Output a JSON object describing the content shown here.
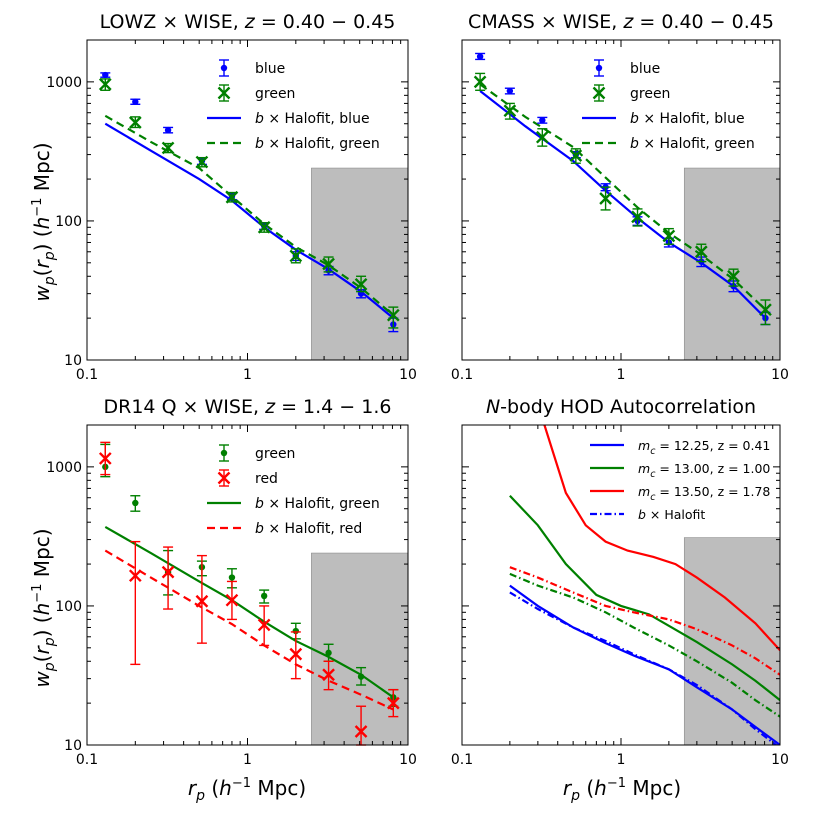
{
  "figure": {
    "ylabel": "w_p(r_p) (h^-1 Mpc)",
    "xlabel": "r_p (h^-1 Mpc)"
  },
  "chart_data": [
    {
      "type": "scatter",
      "title": "LOWZ × WISE, z = 0.40 − 0.45",
      "title_parts": [
        "LOWZ × WISE, ",
        "z",
        " = 0.40 − 0.45"
      ],
      "xscale": "log",
      "yscale": "log",
      "xlim": [
        0.1,
        10
      ],
      "ylim": [
        10,
        2000
      ],
      "xticks": [
        0.1,
        1,
        10
      ],
      "xtick_labels": [
        "0.1",
        "1",
        "10"
      ],
      "yticks": [
        10,
        100,
        1000
      ],
      "ytick_labels": [
        "10",
        "100",
        "1000"
      ],
      "show_ytick_labels": true,
      "show_ylabel": true,
      "show_xlabel": false,
      "shaded_region": {
        "x_from": 2.5,
        "x_to": 10,
        "y_from": 10,
        "y_to": 240
      },
      "legend": {
        "placement": "top-right",
        "entries": [
          {
            "label": "blue",
            "color": "#0000ff",
            "marker": "dot"
          },
          {
            "label": "green",
            "color": "#008000",
            "marker": "x"
          },
          {
            "label": "b × Halofit, blue",
            "color": "#0000ff",
            "line": "solid"
          },
          {
            "label": "b × Halofit, green",
            "color": "#008000",
            "line": "dashed"
          }
        ]
      },
      "points": [
        {
          "name": "blue",
          "color": "#0000ff",
          "marker": "dot",
          "x": [
            0.13,
            0.2,
            0.32,
            0.52,
            0.8,
            1.27,
            2.0,
            3.2,
            5.1,
            8.1
          ],
          "y": [
            1120,
            720,
            450,
            270,
            150,
            92,
            56,
            44,
            30,
            18
          ],
          "yerr_low": [
            1080,
            690,
            430,
            255,
            142,
            87,
            52,
            41,
            28,
            16
          ],
          "yerr_high": [
            1160,
            750,
            470,
            285,
            158,
            97,
            60,
            47,
            32,
            20
          ]
        },
        {
          "name": "green",
          "color": "#008000",
          "marker": "x",
          "x": [
            0.13,
            0.2,
            0.32,
            0.52,
            0.8,
            1.27,
            2.0,
            3.2,
            5.1,
            8.1
          ],
          "y": [
            960,
            510,
            335,
            265,
            148,
            90,
            56,
            49,
            35,
            21
          ],
          "yerr_low": [
            870,
            470,
            310,
            245,
            137,
            83,
            50,
            43,
            31,
            17
          ],
          "yerr_high": [
            1050,
            560,
            360,
            285,
            160,
            97,
            63,
            55,
            40,
            24
          ]
        }
      ],
      "lines": [
        {
          "name": "b × Halofit, blue",
          "color": "#0000ff",
          "dash": "solid",
          "x": [
            0.13,
            0.25,
            0.5,
            0.8,
            1.27,
            2.0,
            3.2,
            5.1,
            8.1
          ],
          "y": [
            500,
            320,
            200,
            140,
            90,
            62,
            45,
            31,
            20
          ]
        },
        {
          "name": "b × Halofit, green",
          "color": "#008000",
          "dash": "dashed",
          "x": [
            0.13,
            0.25,
            0.5,
            0.8,
            1.27,
            2.0,
            3.2,
            5.1,
            8.1
          ],
          "y": [
            570,
            370,
            240,
            150,
            95,
            65,
            48,
            33,
            21
          ]
        }
      ]
    },
    {
      "type": "scatter",
      "title": "CMASS × WISE, z = 0.40 − 0.45",
      "title_parts": [
        "CMASS × WISE, ",
        "z",
        " = 0.40 − 0.45"
      ],
      "xscale": "log",
      "yscale": "log",
      "xlim": [
        0.1,
        10
      ],
      "ylim": [
        10,
        2000
      ],
      "xticks": [
        0.1,
        1,
        10
      ],
      "xtick_labels": [
        "0.1",
        "1",
        "10"
      ],
      "yticks": [
        10,
        100,
        1000
      ],
      "ytick_labels": [
        "10",
        "100",
        "1000"
      ],
      "show_ytick_labels": false,
      "show_ylabel": false,
      "show_xlabel": false,
      "shaded_region": {
        "x_from": 2.5,
        "x_to": 10,
        "y_from": 10,
        "y_to": 240
      },
      "legend": {
        "placement": "top-right",
        "entries": [
          {
            "label": "blue",
            "color": "#0000ff",
            "marker": "dot"
          },
          {
            "label": "green",
            "color": "#008000",
            "marker": "x"
          },
          {
            "label": "b × Halofit, blue",
            "color": "#0000ff",
            "line": "solid"
          },
          {
            "label": "b × Halofit, green",
            "color": "#008000",
            "line": "dashed"
          }
        ]
      },
      "points": [
        {
          "name": "blue",
          "color": "#0000ff",
          "marker": "dot",
          "x": [
            0.13,
            0.2,
            0.32,
            0.52,
            0.8,
            1.27,
            2.0,
            3.2,
            5.1,
            8.1
          ],
          "y": [
            1520,
            860,
            530,
            300,
            175,
            100,
            70,
            51,
            34,
            20
          ],
          "yerr_low": [
            1450,
            820,
            505,
            285,
            165,
            93,
            65,
            47,
            31,
            18
          ],
          "yerr_high": [
            1600,
            900,
            555,
            315,
            185,
            107,
            75,
            55,
            37,
            22
          ]
        },
        {
          "name": "green",
          "color": "#008000",
          "marker": "x",
          "x": [
            0.13,
            0.2,
            0.32,
            0.52,
            0.8,
            1.27,
            2.0,
            3.2,
            5.1,
            8.1
          ],
          "y": [
            1000,
            620,
            400,
            295,
            145,
            107,
            78,
            60,
            40,
            23
          ],
          "yerr_low": [
            870,
            540,
            345,
            260,
            120,
            92,
            68,
            51,
            34,
            18
          ],
          "yerr_high": [
            1150,
            700,
            460,
            330,
            175,
            122,
            88,
            68,
            45,
            27
          ]
        }
      ],
      "lines": [
        {
          "name": "b × Halofit, blue",
          "color": "#0000ff",
          "dash": "solid",
          "x": [
            0.13,
            0.25,
            0.5,
            0.8,
            1.27,
            2.0,
            3.2,
            5.1,
            8.1
          ],
          "y": [
            860,
            480,
            270,
            165,
            105,
            70,
            50,
            34,
            20
          ]
        },
        {
          "name": "b × Halofit, green",
          "color": "#008000",
          "dash": "dashed",
          "x": [
            0.13,
            0.25,
            0.5,
            0.8,
            1.27,
            2.0,
            3.2,
            5.1,
            8.1
          ],
          "y": [
            960,
            560,
            340,
            205,
            125,
            82,
            57,
            38,
            23
          ]
        }
      ]
    },
    {
      "type": "scatter",
      "title": "DR14 Q × WISE, z = 1.4 − 1.6",
      "title_parts": [
        "DR14 Q × WISE, ",
        "z",
        " = 1.4 − 1.6"
      ],
      "xscale": "log",
      "yscale": "log",
      "xlim": [
        0.1,
        10
      ],
      "ylim": [
        10,
        2000
      ],
      "xticks": [
        0.1,
        1,
        10
      ],
      "xtick_labels": [
        "0.1",
        "1",
        "10"
      ],
      "yticks": [
        10,
        100,
        1000
      ],
      "ytick_labels": [
        "10",
        "100",
        "1000"
      ],
      "show_ytick_labels": true,
      "show_ylabel": true,
      "show_xlabel": true,
      "shaded_region": {
        "x_from": 2.5,
        "x_to": 10,
        "y_from": 10,
        "y_to": 240
      },
      "legend": {
        "placement": "top-right",
        "entries": [
          {
            "label": "green",
            "color": "#008000",
            "marker": "dot"
          },
          {
            "label": "red",
            "color": "#ff0000",
            "marker": "x"
          },
          {
            "label": "b × Halofit, green",
            "color": "#008000",
            "line": "solid"
          },
          {
            "label": "b × Halofit, red",
            "color": "#ff0000",
            "line": "dashed"
          }
        ]
      },
      "points": [
        {
          "name": "green",
          "color": "#008000",
          "marker": "dot",
          "x": [
            0.13,
            0.2,
            0.32,
            0.52,
            0.8,
            1.27,
            2.0,
            3.2,
            5.1,
            8.1
          ],
          "y": [
            1000,
            550,
            175,
            190,
            160,
            118,
            66,
            46,
            31,
            22
          ],
          "yerr_low": [
            850,
            480,
            120,
            165,
            135,
            105,
            58,
            40,
            27,
            19
          ],
          "yerr_high": [
            1450,
            620,
            250,
            210,
            185,
            130,
            75,
            53,
            36,
            25
          ]
        },
        {
          "name": "red",
          "color": "#ff0000",
          "marker": "x",
          "x": [
            0.13,
            0.2,
            0.32,
            0.52,
            0.8,
            1.27,
            2.0,
            3.2,
            5.1,
            8.1
          ],
          "y": [
            1150,
            165,
            175,
            108,
            110,
            73,
            45,
            32,
            12.5,
            20
          ],
          "yerr_low": [
            880,
            38,
            95,
            54,
            80,
            52,
            30,
            25,
            10,
            16
          ],
          "yerr_high": [
            1500,
            290,
            265,
            230,
            150,
            100,
            65,
            40,
            19,
            25
          ]
        }
      ],
      "lines": [
        {
          "name": "b × Halofit, green",
          "color": "#008000",
          "dash": "solid",
          "x": [
            0.13,
            0.25,
            0.5,
            0.8,
            1.27,
            2.0,
            3.2,
            5.1,
            8.1
          ],
          "y": [
            370,
            240,
            150,
            110,
            77,
            56,
            43,
            32,
            22
          ]
        },
        {
          "name": "b × Halofit, red",
          "color": "#ff0000",
          "dash": "dashed",
          "x": [
            0.13,
            0.25,
            0.5,
            0.8,
            1.27,
            2.0,
            3.2,
            5.1,
            8.1
          ],
          "y": [
            250,
            160,
            100,
            74,
            52,
            38,
            29,
            23,
            18
          ]
        }
      ]
    },
    {
      "type": "line",
      "title": "N-body HOD Autocorrelation",
      "title_parts": [
        "",
        "N",
        "-body HOD Autocorrelation"
      ],
      "xscale": "log",
      "yscale": "log",
      "xlim": [
        0.1,
        10
      ],
      "ylim": [
        10,
        2000
      ],
      "xticks": [
        0.1,
        1,
        10
      ],
      "xtick_labels": [
        "0.1",
        "1",
        "10"
      ],
      "yticks": [
        10,
        100,
        1000
      ],
      "ytick_labels": [
        "10",
        "100",
        "1000"
      ],
      "show_ytick_labels": false,
      "show_ylabel": false,
      "show_xlabel": true,
      "shaded_region": {
        "x_from": 2.5,
        "x_to": 10,
        "y_from": 10,
        "y_to": 310
      },
      "legend": {
        "placement": "top-right",
        "entries": [
          {
            "label": "m_c = 12.25, z = 0.41",
            "prefix": "m",
            "sub": "c",
            "rest": " = 12.25, z = 0.41",
            "color": "#0000ff",
            "line": "solid"
          },
          {
            "label": "m_c = 13.00, z = 1.00",
            "prefix": "m",
            "sub": "c",
            "rest": " = 13.00, z = 1.00",
            "color": "#008000",
            "line": "solid"
          },
          {
            "label": "m_c = 13.50, z = 1.78",
            "prefix": "m",
            "sub": "c",
            "rest": " = 13.50, z = 1.78",
            "color": "#ff0000",
            "line": "solid"
          },
          {
            "label": "b × Halofit",
            "color": "#0000ff",
            "line": "dashdot"
          }
        ]
      },
      "points": [],
      "lines": [
        {
          "name": "m_c = 12.25, z = 0.41",
          "color": "#0000ff",
          "dash": "solid",
          "x": [
            0.2,
            0.3,
            0.5,
            0.8,
            1.2,
            2.0,
            3.0,
            5.0,
            7.0,
            10.0
          ],
          "y": [
            140,
            100,
            70,
            54,
            44,
            35,
            26,
            18,
            13.5,
            10
          ]
        },
        {
          "name": "m_c = 13.00, z = 1.00",
          "color": "#008000",
          "dash": "solid",
          "x": [
            0.2,
            0.3,
            0.45,
            0.7,
            1.0,
            1.5,
            2.0,
            3.0,
            5.0,
            7.0,
            10.0
          ],
          "y": [
            620,
            380,
            200,
            120,
            100,
            87,
            72,
            55,
            38,
            29,
            21
          ]
        },
        {
          "name": "m_c = 13.50, z = 1.78",
          "color": "#ff0000",
          "dash": "solid",
          "x": [
            0.33,
            0.45,
            0.6,
            0.8,
            1.1,
            1.6,
            2.2,
            3.0,
            4.5,
            7.0,
            10.0
          ],
          "y": [
            2000,
            650,
            380,
            290,
            250,
            225,
            200,
            160,
            115,
            75,
            48
          ]
        },
        {
          "name": "b × Halofit (blue)",
          "color": "#0000ff",
          "dash": "dashdot",
          "x": [
            0.2,
            0.3,
            0.5,
            0.8,
            1.2,
            2.0,
            3.0,
            5.0,
            7.0,
            10.0
          ],
          "y": [
            125,
            95,
            70,
            56,
            45,
            35,
            27,
            18,
            13,
            9.5
          ]
        },
        {
          "name": "b × Halofit (green)",
          "color": "#008000",
          "dash": "dashdot",
          "x": [
            0.2,
            0.3,
            0.5,
            0.8,
            1.2,
            2.0,
            3.0,
            5.0,
            7.0,
            10.0
          ],
          "y": [
            170,
            140,
            115,
            90,
            70,
            52,
            40,
            28,
            21,
            16
          ]
        },
        {
          "name": "b × Halofit (red)",
          "color": "#ff0000",
          "dash": "dashdot",
          "x": [
            0.2,
            0.3,
            0.5,
            0.8,
            1.2,
            2.0,
            3.0,
            5.0,
            7.0,
            10.0
          ],
          "y": [
            190,
            160,
            125,
            100,
            90,
            80,
            68,
            52,
            42,
            32
          ]
        }
      ]
    }
  ]
}
